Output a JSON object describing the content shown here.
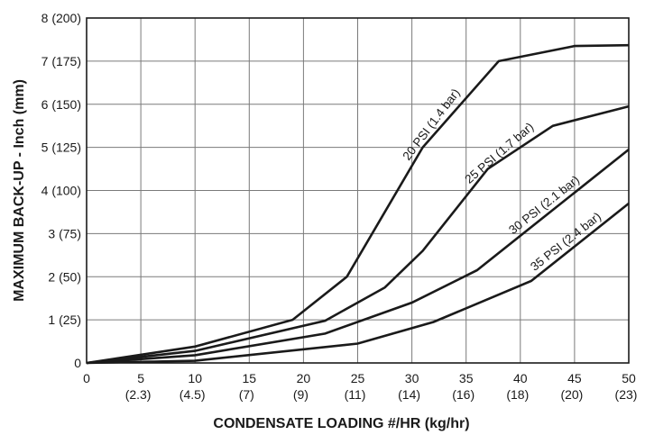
{
  "chart_data": {
    "type": "line",
    "title": "",
    "xlabel": "CONDENSATE LOADING #/HR (kg/hr)",
    "ylabel": "MAXIMUM BACK-UP - Inch (mm)",
    "xlim": [
      0,
      50
    ],
    "ylim": [
      0,
      8
    ],
    "grid": true,
    "legend": "inline-labels",
    "line_color": "#1a1a1a",
    "grid_color": "#7a7a7a",
    "x_ticks": [
      {
        "value": 0,
        "label": "0",
        "sublabel": ""
      },
      {
        "value": 5,
        "label": "5",
        "sublabel": "(2.3)"
      },
      {
        "value": 10,
        "label": "10",
        "sublabel": "(4.5)"
      },
      {
        "value": 15,
        "label": "15",
        "sublabel": "(7)"
      },
      {
        "value": 20,
        "label": "20",
        "sublabel": "(9)"
      },
      {
        "value": 25,
        "label": "25",
        "sublabel": "(11)"
      },
      {
        "value": 30,
        "label": "30",
        "sublabel": "(14)"
      },
      {
        "value": 35,
        "label": "35",
        "sublabel": "(16)"
      },
      {
        "value": 40,
        "label": "40",
        "sublabel": "(18)"
      },
      {
        "value": 45,
        "label": "45",
        "sublabel": "(20)"
      },
      {
        "value": 50,
        "label": "50",
        "sublabel": "(23)"
      }
    ],
    "y_ticks": [
      {
        "value": 0,
        "label": "0"
      },
      {
        "value": 1,
        "label": "1 (25)"
      },
      {
        "value": 2,
        "label": "2 (50)"
      },
      {
        "value": 3,
        "label": "3 (75)"
      },
      {
        "value": 4,
        "label": "4 (100)"
      },
      {
        "value": 5,
        "label": "5 (125)"
      },
      {
        "value": 6,
        "label": "6 (150)"
      },
      {
        "value": 7,
        "label": "7 (175)"
      },
      {
        "value": 8,
        "label": "8 (200)"
      }
    ],
    "series": [
      {
        "name": "20 PSI (1.4 bar)",
        "x": [
          0,
          10,
          19,
          24,
          31,
          38,
          45,
          50
        ],
        "y": [
          0,
          0.38,
          1.0,
          2.0,
          5.0,
          7.0,
          7.35,
          7.37
        ],
        "label_at": [
          30,
          33
        ]
      },
      {
        "name": "25 PSI (1.7 bar)",
        "x": [
          0,
          10,
          22,
          27.5,
          31,
          37,
          43,
          50
        ],
        "y": [
          0,
          0.28,
          0.98,
          1.75,
          2.6,
          4.5,
          5.5,
          5.95
        ],
        "label_at": [
          35.5,
          40
        ]
      },
      {
        "name": "30 PSI (2.1 bar)",
        "x": [
          0,
          10,
          22,
          30,
          36,
          50
        ],
        "y": [
          0,
          0.18,
          0.68,
          1.4,
          2.15,
          4.95
        ],
        "label_at": [
          39.5,
          44.5
        ]
      },
      {
        "name": "35 PSI (2.4 bar)",
        "x": [
          0,
          10,
          25,
          32,
          41,
          50
        ],
        "y": [
          0,
          0.05,
          0.45,
          0.95,
          1.9,
          3.7
        ],
        "label_at": [
          41.5,
          46.5
        ]
      }
    ]
  }
}
